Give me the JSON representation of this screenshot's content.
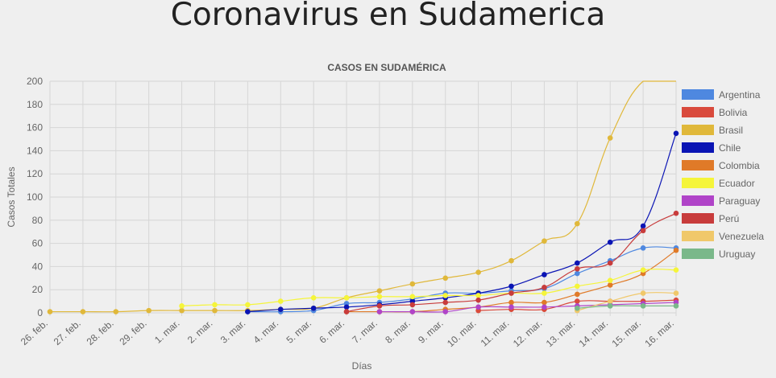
{
  "page": {
    "title": "Coronavirus en Sudamerica"
  },
  "chart_data": {
    "type": "line",
    "title": "CASOS EN SUDAMÉRICA",
    "xlabel": "Días",
    "ylabel": "Casos Totales",
    "ylim": [
      0,
      200
    ],
    "yticks": [
      0,
      20,
      40,
      60,
      80,
      100,
      120,
      140,
      160,
      180,
      200
    ],
    "grid": true,
    "legend": "right",
    "categories": [
      "26. feb.",
      "27. feb.",
      "28. feb.",
      "29. feb.",
      "1. mar.",
      "2. mar.",
      "3. mar.",
      "4. mar.",
      "5. mar.",
      "6. mar.",
      "7. mar.",
      "8. mar.",
      "9. mar.",
      "10. mar.",
      "11. mar.",
      "12. mar.",
      "13. mar.",
      "14. mar.",
      "15. mar.",
      "16. mar."
    ],
    "series": [
      {
        "name": "Argentina",
        "color": "#4e88e0",
        "values": [
          null,
          null,
          null,
          null,
          null,
          null,
          1,
          1,
          2,
          8,
          9,
          12,
          17,
          17,
          19,
          21,
          34,
          45,
          56,
          56
        ]
      },
      {
        "name": "Bolivia",
        "color": "#d94a3c",
        "values": [
          null,
          null,
          null,
          null,
          null,
          null,
          null,
          null,
          null,
          null,
          null,
          null,
          null,
          2,
          3,
          3,
          10,
          10,
          10,
          11
        ]
      },
      {
        "name": "Brasil",
        "color": "#e0b83a",
        "values": [
          1,
          1,
          1,
          2,
          2,
          2,
          2,
          3,
          4,
          13,
          19,
          25,
          30,
          35,
          45,
          62,
          77,
          151,
          200,
          200
        ]
      },
      {
        "name": "Chile",
        "color": "#0a14b4",
        "values": [
          null,
          null,
          null,
          null,
          null,
          null,
          1,
          3,
          4,
          5,
          7,
          10,
          13,
          17,
          23,
          33,
          43,
          61,
          75,
          155
        ]
      },
      {
        "name": "Colombia",
        "color": "#e07a28",
        "values": [
          null,
          null,
          null,
          null,
          null,
          null,
          null,
          null,
          null,
          1,
          1,
          1,
          3,
          5,
          9,
          9,
          16,
          24,
          34,
          54
        ]
      },
      {
        "name": "Ecuador",
        "color": "#f5f53a",
        "values": [
          null,
          null,
          null,
          null,
          6,
          7,
          7,
          10,
          13,
          13,
          14,
          14,
          15,
          15,
          17,
          17,
          23,
          28,
          37,
          37
        ]
      },
      {
        "name": "Paraguay",
        "color": "#b044c8",
        "values": [
          null,
          null,
          null,
          null,
          null,
          null,
          null,
          null,
          null,
          null,
          1,
          1,
          1,
          5,
          5,
          5,
          6,
          7,
          8,
          9
        ]
      },
      {
        "name": "Perú",
        "color": "#c83c3c",
        "values": [
          null,
          null,
          null,
          null,
          null,
          null,
          null,
          null,
          null,
          1,
          6,
          7,
          9,
          11,
          17,
          22,
          38,
          43,
          71,
          86
        ]
      },
      {
        "name": "Venezuela",
        "color": "#f0c86a",
        "values": [
          null,
          null,
          null,
          null,
          null,
          null,
          null,
          null,
          null,
          null,
          null,
          null,
          null,
          null,
          null,
          null,
          2,
          10,
          17,
          17
        ]
      },
      {
        "name": "Uruguay",
        "color": "#7ab88a",
        "values": [
          null,
          null,
          null,
          null,
          null,
          null,
          null,
          null,
          null,
          null,
          null,
          null,
          null,
          null,
          null,
          null,
          4,
          6,
          6,
          6
        ]
      }
    ]
  }
}
